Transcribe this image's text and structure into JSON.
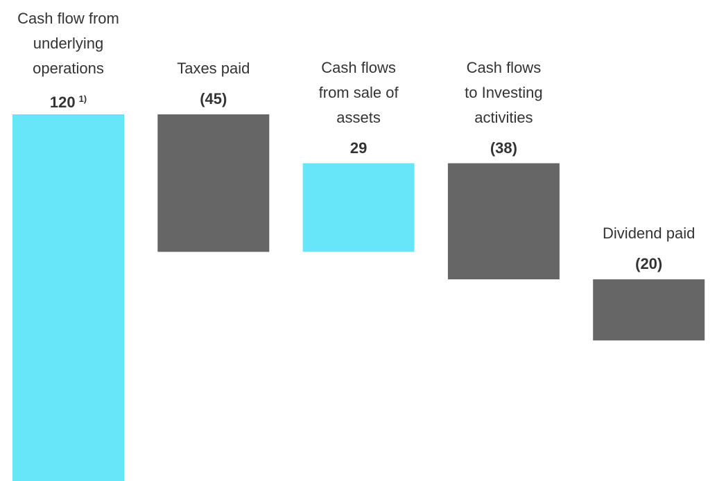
{
  "chart_data": {
    "type": "waterfall",
    "categories": [
      "Cash flow from\nunderlying\noperations",
      "Taxes paid",
      "Cash flows\nfrom sale of\nassets",
      "Cash flows\nto Investing\nactivities",
      "Dividend paid"
    ],
    "values": [
      120,
      -45,
      29,
      -38,
      -20
    ],
    "value_labels": [
      "120",
      "(45)",
      "29",
      "(38)",
      "(20)"
    ],
    "value_notes": [
      "1)",
      null,
      null,
      null,
      null
    ],
    "increase_color": "#67e6fa",
    "decrease_color": "#666666"
  }
}
